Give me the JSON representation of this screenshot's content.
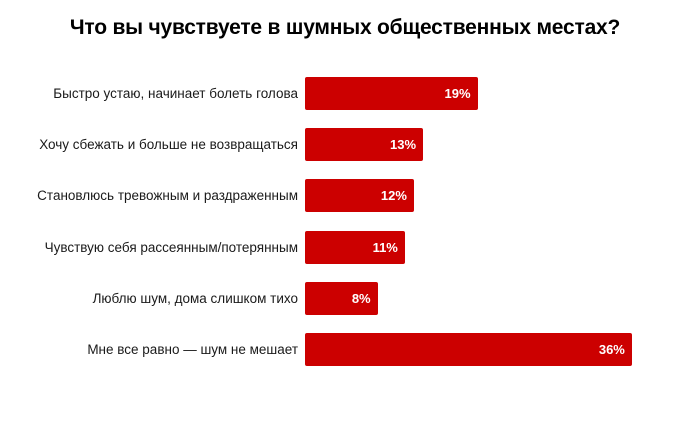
{
  "chart_data": {
    "type": "bar",
    "orientation": "horizontal",
    "title": "Что вы чувствуете в шумных общественных местах?",
    "xlabel": "",
    "ylabel": "",
    "grid": false,
    "legend": null,
    "bar_color": "#cc0000",
    "label_color": "#ffffff",
    "categories": [
      "Быстро устаю, начинает болеть голова",
      "Хочу сбежать и больше не возвращаться",
      "Становлюсь тревожным и раздраженным",
      "Чувствую себя рассеянным/потерянным",
      "Люблю шум, дома слишком тихо",
      "Мне все равно — шум не мешает"
    ],
    "values": [
      19,
      13,
      12,
      11,
      8,
      36
    ],
    "value_labels": [
      "19%",
      "13%",
      "12%",
      "11%",
      "8%",
      "36%"
    ],
    "unit": "%"
  }
}
